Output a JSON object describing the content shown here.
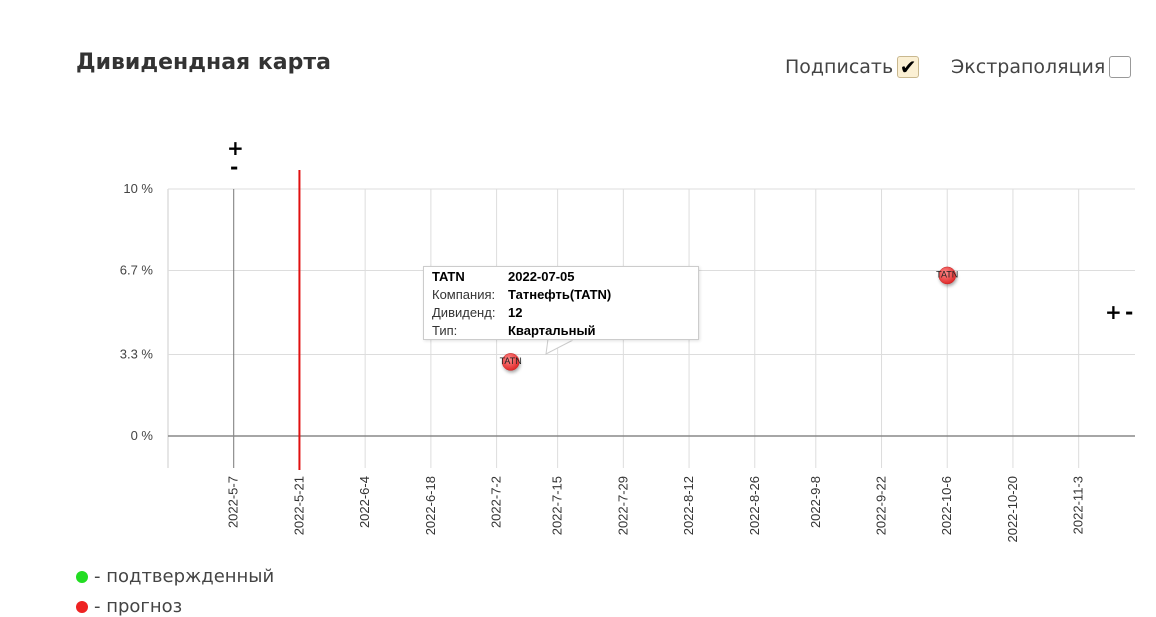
{
  "header": {
    "title": "Дивидендная карта",
    "sign_label": "Подписать",
    "sign_checked": true,
    "extrapolation_label": "Экстраполяция",
    "extrapolation_checked": false,
    "check_glyph": "✔"
  },
  "zoom": {
    "plus": "+",
    "minus": "-"
  },
  "tooltip": {
    "ticker": "TATN",
    "date": "2022-07-05",
    "company_label": "Компания:",
    "company": "Татнефть(TATN)",
    "dividend_label": "Дивиденд:",
    "dividend": "12",
    "type_label": "Тип:",
    "type": "Квартальный"
  },
  "legend": [
    {
      "label": "- подтвержденный",
      "color": "#22dd22"
    },
    {
      "label": "- прогноз",
      "color": "#ee2222"
    }
  ],
  "chart_data": {
    "type": "scatter",
    "title": "",
    "xlabel": "",
    "ylabel": "",
    "y_ticks": [
      "0 %",
      "3.3 %",
      "6.7 %",
      "10 %"
    ],
    "y_tick_values": [
      0,
      3.3,
      6.7,
      10
    ],
    "ylim": [
      0,
      10
    ],
    "x_ticks": [
      "2022-5-7",
      "2022-5-21",
      "2022-6-4",
      "2022-6-18",
      "2022-7-2",
      "2022-7-15",
      "2022-7-29",
      "2022-8-12",
      "2022-8-26",
      "2022-9-8",
      "2022-9-22",
      "2022-10-6",
      "2022-10-20",
      "2022-11-3"
    ],
    "xlim": [
      "2022-04-23",
      "2022-11-15"
    ],
    "today_marker": "2022-05-21",
    "grid": true,
    "points": [
      {
        "label": "TATN",
        "date": "2022-07-05",
        "y": 3.0,
        "status": "прогноз",
        "color": "#ee3333"
      },
      {
        "label": "TATN",
        "date": "2022-10-06",
        "y": 6.5,
        "status": "прогноз",
        "color": "#ee3333"
      }
    ]
  }
}
